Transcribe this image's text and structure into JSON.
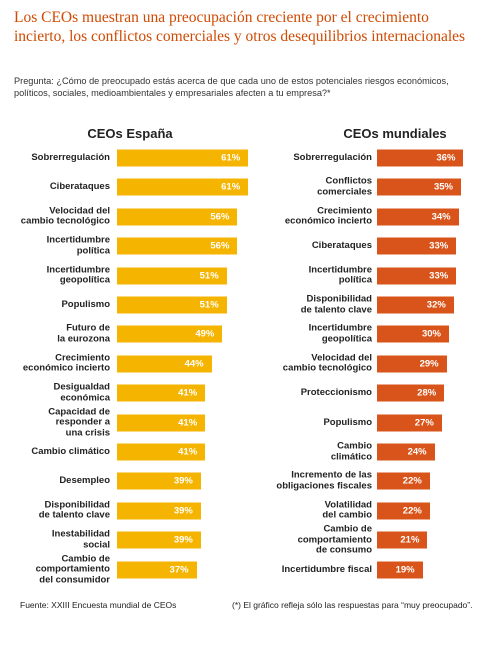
{
  "title": "Los CEOs muestran una preocupación creciente por el crecimiento\nincierto, los conflictos comerciales y otros desequilibrios internacionales",
  "question": "Pregunta: ¿Cómo de preocupado estás acerca de que cada uno de estos potenciales riesgos económicos,\npolíticos, sociales, medioambientales y empresariales afecten a tu empresa?*",
  "source": "Fuente: XXIII Encuesta mundial de CEOs",
  "note": "(*) El gráfico refleja sólo las respuestas para “muy preocupado”.",
  "chart_data": [
    {
      "type": "bar",
      "orientation": "horizontal",
      "title": "CEOs España",
      "color": "#f5b400",
      "categories": [
        "Sobrerregulación",
        "Ciberataques",
        "Velocidad del\ncambio tecnológico",
        "Incertidumbre\npolítica",
        "Incertidumbre\ngeopolítica",
        "Populismo",
        "Futuro de\nla eurozona",
        "Crecimiento\neconómico incierto",
        "Desigualdad\neconómica",
        "Capacidad de\nresponder a\nuna crisis",
        "Cambio climático",
        "Desempleo",
        "Disponibilidad\nde talento clave",
        "Inestabilidad\nsocial",
        "Cambio de\ncomportamiento\ndel consumidor"
      ],
      "values": [
        61,
        61,
        56,
        56,
        51,
        51,
        49,
        44,
        41,
        41,
        41,
        39,
        39,
        39,
        37
      ],
      "value_labels": [
        "61%",
        "61%",
        "56%",
        "56%",
        "51%",
        "51%",
        "49%",
        "44%",
        "41%",
        "41%",
        "41%",
        "39%",
        "39%",
        "39%",
        "37%"
      ]
    },
    {
      "type": "bar",
      "orientation": "horizontal",
      "title": "CEOs mundiales",
      "color": "#d9541a",
      "categories": [
        "Sobrerregulación",
        "Conflictos\ncomerciales",
        "Crecimiento\neconómico incierto",
        "Ciberataques",
        "Incertidumbre\npolítica",
        "Disponibilidad\nde talento clave",
        "Incertidumbre\ngeopolítica",
        "Velocidad del\ncambio tecnológico",
        "Proteccionismo",
        "Populismo",
        "Cambio\nclimático",
        "Incremento de las\nobligaciones fiscales",
        "Volatilidad\ndel cambio",
        "Cambio de\ncomportamiento\nde consumo",
        "Incertidumbre fiscal"
      ],
      "values": [
        36,
        35,
        34,
        33,
        33,
        32,
        30,
        29,
        28,
        27,
        24,
        22,
        22,
        21,
        19
      ],
      "value_labels": [
        "36%",
        "35%",
        "34%",
        "33%",
        "33%",
        "32%",
        "30%",
        "29%",
        "28%",
        "27%",
        "24%",
        "22%",
        "22%",
        "21%",
        "19%"
      ]
    }
  ]
}
